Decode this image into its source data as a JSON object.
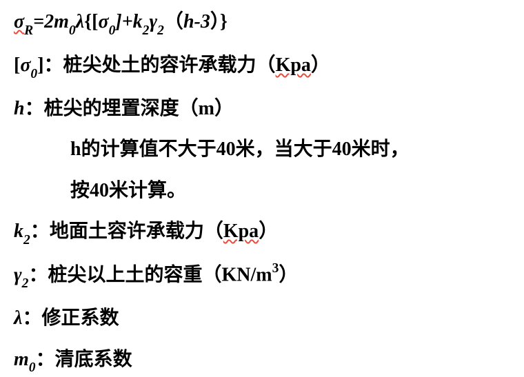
{
  "formula": {
    "sigma_R": "σ",
    "sub_R": "R",
    "eq": "=2m",
    "sub_0a": "0",
    "lambda": "λ",
    "lbrace": "{[",
    "sigma_0": "σ",
    "sub_0b": "0",
    "rbracket_plus": "]+k",
    "sub_2a": "2",
    "gamma": "γ",
    "sub_2b": "2",
    "paren_open": "（",
    "h_minus_3": "h-3",
    "paren_close": "）",
    "rbrace": "}"
  },
  "line2": {
    "lbracket": "[",
    "sigma": "σ",
    "sub_0": "0",
    "rbracket_colon": "]：",
    "text": "桩尖处土的容许承载力（",
    "unit": "Kpa",
    "close": "）"
  },
  "line3": {
    "h": "h",
    "colon": "：",
    "text": "桩尖的埋置深度（",
    "unit": "m",
    "close": "）"
  },
  "line4": {
    "text": "h的计算值不大于40米，当大于40米时，"
  },
  "line5": {
    "text": "按40米计算。"
  },
  "line6": {
    "k": "k",
    "sub_2": "2",
    "colon": "：",
    "text": "地面土容许承载力（",
    "unit": "Kpa",
    "close": "）"
  },
  "line7": {
    "gamma": "γ",
    "sub_2": "2",
    "colon": "：",
    "text": "桩尖以上土的容重（",
    "unit": "KN/m",
    "sup_3": "3",
    "close": "）"
  },
  "line8": {
    "lambda": "λ",
    "colon": "：",
    "text": "修正系数"
  },
  "line9": {
    "m": "m",
    "sub_0": "0",
    "colon": "：",
    "text": "清底系数"
  }
}
